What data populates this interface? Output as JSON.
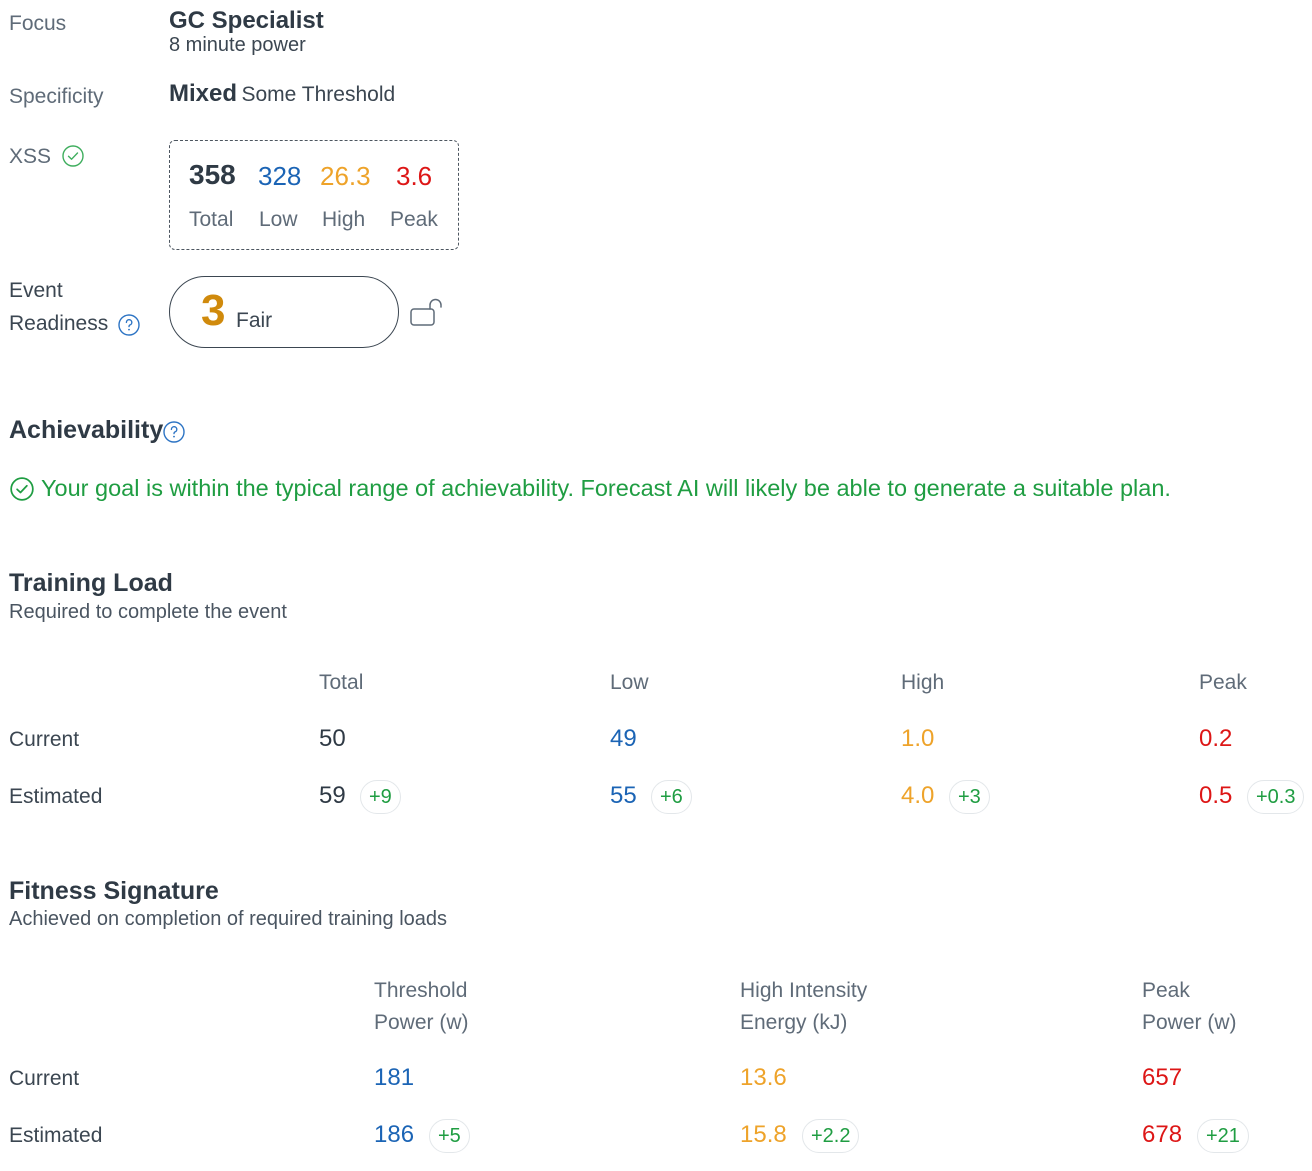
{
  "focus": {
    "label": "Focus",
    "title": "GC Specialist",
    "subtitle": "8 minute power"
  },
  "specificity": {
    "label": "Specificity",
    "value": "Mixed",
    "detail": "Some Threshold"
  },
  "xss": {
    "label": "XSS",
    "total": {
      "value": "358",
      "label": "Total"
    },
    "low": {
      "value": "328",
      "label": "Low"
    },
    "high": {
      "value": "26.3",
      "label": "High"
    },
    "peak": {
      "value": "3.6",
      "label": "Peak"
    }
  },
  "readiness": {
    "label_line1": "Event",
    "label_line2": "Readiness",
    "score": "3",
    "rating": "Fair"
  },
  "achievability": {
    "title": "Achievability",
    "message": "Your goal is within the typical range of achievability. Forecast AI will likely be able to generate a suitable plan."
  },
  "training_load": {
    "title": "Training Load",
    "subtitle": "Required to complete the event",
    "headers": {
      "total": "Total",
      "low": "Low",
      "high": "High",
      "peak": "Peak"
    },
    "current": {
      "label": "Current",
      "total": "50",
      "low": "49",
      "high": "1.0",
      "peak": "0.2"
    },
    "estimated": {
      "label": "Estimated",
      "total": "59",
      "total_delta": "+9",
      "low": "55",
      "low_delta": "+6",
      "high": "4.0",
      "high_delta": "+3",
      "peak": "0.5",
      "peak_delta": "+0.3"
    }
  },
  "fitness_signature": {
    "title": "Fitness Signature",
    "subtitle": "Achieved on completion of required training loads",
    "headers": {
      "threshold_1": "Threshold",
      "threshold_2": "Power (w)",
      "high_1": "High Intensity",
      "high_2": "Energy (kJ)",
      "peak_1": "Peak",
      "peak_2": "Power (w)"
    },
    "current": {
      "label": "Current",
      "threshold": "181",
      "high": "13.6",
      "peak": "657"
    },
    "estimated": {
      "label": "Estimated",
      "threshold": "186",
      "threshold_delta": "+5",
      "high": "15.8",
      "high_delta": "+2.2",
      "peak": "678",
      "peak_delta": "+21"
    }
  },
  "colors": {
    "blue": "#1b64b5",
    "orange": "#eea32a",
    "red": "#dd1616",
    "green": "#1f9d42",
    "readiness": "#d08a0c"
  },
  "icons": [
    "check-circle-icon",
    "help-circle-icon",
    "unlock-icon"
  ]
}
